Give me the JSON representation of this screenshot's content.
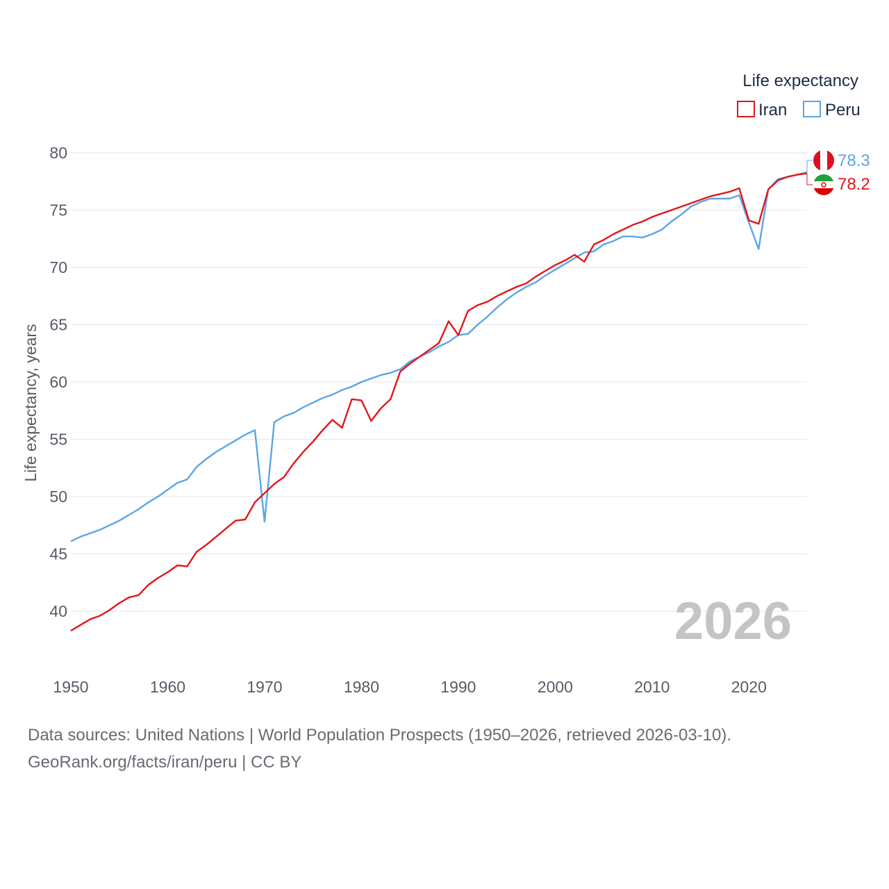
{
  "chart_data": {
    "type": "line",
    "title": "",
    "legend_title": "Life expectancy",
    "xlabel": "",
    "ylabel": "Life expectancy, years",
    "xlim": [
      1950,
      2026
    ],
    "ylim": [
      36.5,
      81
    ],
    "x_ticks": [
      1950,
      1960,
      1970,
      1980,
      1990,
      2000,
      2010,
      2020
    ],
    "y_ticks": [
      40,
      45,
      50,
      55,
      60,
      65,
      70,
      75,
      80
    ],
    "year_label": "2026",
    "legend_position": "top-right",
    "grid": true,
    "x": [
      1950,
      1951,
      1952,
      1953,
      1954,
      1955,
      1956,
      1957,
      1958,
      1959,
      1960,
      1961,
      1962,
      1963,
      1964,
      1965,
      1966,
      1967,
      1968,
      1969,
      1970,
      1971,
      1972,
      1973,
      1974,
      1975,
      1976,
      1977,
      1978,
      1979,
      1980,
      1981,
      1982,
      1983,
      1984,
      1985,
      1986,
      1987,
      1988,
      1989,
      1990,
      1991,
      1992,
      1993,
      1994,
      1995,
      1996,
      1997,
      1998,
      1999,
      2000,
      2001,
      2002,
      2003,
      2004,
      2005,
      2006,
      2007,
      2008,
      2009,
      2010,
      2011,
      2012,
      2013,
      2014,
      2015,
      2016,
      2017,
      2018,
      2019,
      2020,
      2021,
      2022,
      2023,
      2024,
      2025,
      2026
    ],
    "series": [
      {
        "name": "Iran",
        "color": "#e3151a",
        "end_label": "78.2",
        "values": [
          38.3,
          38.8,
          39.3,
          39.6,
          40.1,
          40.7,
          41.2,
          41.4,
          42.3,
          42.9,
          43.4,
          44.0,
          43.9,
          45.2,
          45.8,
          46.5,
          47.2,
          47.9,
          48.0,
          49.5,
          50.3,
          51.1,
          51.7,
          52.9,
          53.9,
          54.8,
          55.8,
          56.7,
          56.0,
          58.5,
          58.4,
          56.6,
          57.7,
          58.5,
          60.9,
          61.6,
          62.2,
          62.8,
          63.4,
          65.3,
          64.1,
          66.2,
          66.7,
          67.0,
          67.5,
          67.9,
          68.3,
          68.6,
          69.2,
          69.7,
          70.2,
          70.6,
          71.1,
          70.5,
          72.0,
          72.4,
          72.9,
          73.3,
          73.7,
          74.0,
          74.4,
          74.7,
          75.0,
          75.3,
          75.6,
          75.9,
          76.2,
          76.4,
          76.6,
          76.9,
          74.1,
          73.8,
          76.8,
          77.6,
          77.9,
          78.1,
          78.2
        ]
      },
      {
        "name": "Peru",
        "color": "#5aa5e6",
        "end_label": "78.3",
        "values": [
          46.1,
          46.5,
          46.8,
          47.1,
          47.5,
          47.9,
          48.4,
          48.9,
          49.5,
          50.0,
          50.6,
          51.2,
          51.5,
          52.6,
          53.3,
          53.9,
          54.4,
          54.9,
          55.4,
          55.8,
          47.8,
          56.5,
          57.0,
          57.3,
          57.8,
          58.2,
          58.6,
          58.9,
          59.3,
          59.6,
          60.0,
          60.3,
          60.6,
          60.8,
          61.1,
          61.8,
          62.2,
          62.6,
          63.1,
          63.5,
          64.1,
          64.2,
          65.0,
          65.7,
          66.5,
          67.2,
          67.8,
          68.3,
          68.7,
          69.3,
          69.8,
          70.3,
          70.8,
          71.3,
          71.4,
          72.0,
          72.3,
          72.7,
          72.7,
          72.6,
          72.9,
          73.3,
          74.0,
          74.6,
          75.3,
          75.7,
          76.0,
          76.0,
          76.0,
          76.3,
          73.9,
          71.6,
          76.8,
          77.7,
          77.9,
          78.1,
          78.3
        ]
      }
    ]
  },
  "source": {
    "line1": "Data sources: United Nations | World Population Prospects (1950–2026, retrieved 2026-03-10).",
    "line2": "GeoRank.org/facts/iran/peru | CC BY"
  },
  "flags": {
    "peru": "peru-flag-icon",
    "iran": "iran-flag-icon"
  }
}
